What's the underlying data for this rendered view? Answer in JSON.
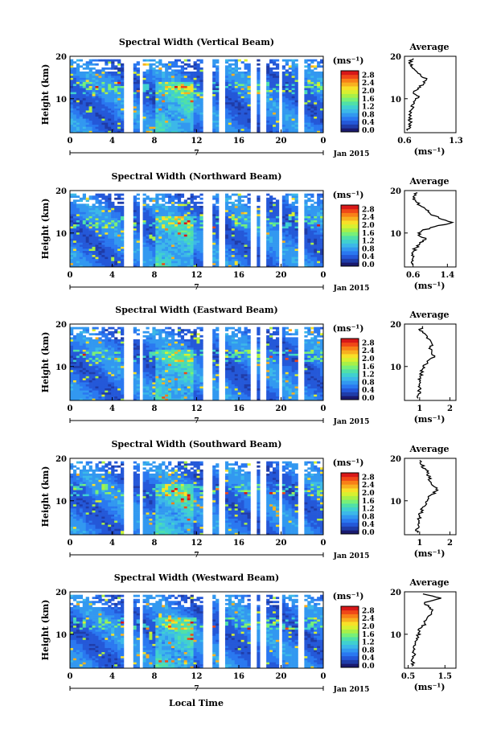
{
  "figure": {
    "xlabel": "Local Time",
    "date_label": "Jan 2015",
    "day_tick": "7",
    "unit_label": "(ms⁻¹)",
    "height_label": "Height (km)",
    "average_title": "Average"
  },
  "colormap": [
    "#1a1a6e",
    "#1f3ca8",
    "#2458d8",
    "#2a78f0",
    "#3298f0",
    "#3cb8e8",
    "#40d0d0",
    "#50e0a8",
    "#78f078",
    "#a8f048",
    "#d8f030",
    "#f8e028",
    "#f8b020",
    "#f88018",
    "#f04818",
    "#d81818"
  ],
  "chart_data": [
    {
      "type": "heatmap",
      "title": "Spectral Width (Vertical Beam)",
      "xlabel": "Local Time",
      "ylabel": "Height (km)",
      "xlim": [
        0,
        24
      ],
      "ylim": [
        2,
        20
      ],
      "xticks": [
        "0",
        "4",
        "8",
        "12",
        "16",
        "20",
        "0"
      ],
      "yticks": [
        "10",
        "20"
      ],
      "gaps": [
        [
          5.1,
          6.0
        ],
        [
          6.5,
          7.0
        ],
        [
          12.7,
          13.4
        ],
        [
          14.2,
          14.6
        ],
        [
          17.1,
          17.6
        ],
        [
          18.1,
          18.6
        ],
        [
          19.7,
          20.2
        ],
        [
          21.7,
          22.1
        ]
      ],
      "top_km": 19.3,
      "colorbar": {
        "ticks": [
          "0.0",
          "0.4",
          "0.8",
          "1.2",
          "1.6",
          "2.0",
          "2.4",
          "2.8"
        ],
        "range": [
          0,
          3.0
        ]
      },
      "average": {
        "title": "Average",
        "xlabel": "(ms⁻¹)",
        "xticks": [
          "0.6",
          "1.3"
        ],
        "xlim": [
          0.6,
          1.3
        ],
        "profile": [
          [
            2.5,
            0.64
          ],
          [
            3.5,
            0.66
          ],
          [
            4.5,
            0.7
          ],
          [
            5.5,
            0.66
          ],
          [
            6.5,
            0.68
          ],
          [
            7.5,
            0.7
          ],
          [
            8.5,
            0.7
          ],
          [
            9.5,
            0.74
          ],
          [
            10.5,
            0.8
          ],
          [
            11.5,
            0.72
          ],
          [
            12.5,
            0.78
          ],
          [
            13.5,
            0.86
          ],
          [
            14.5,
            0.9
          ],
          [
            15.5,
            0.82
          ],
          [
            16.5,
            0.76
          ],
          [
            17.5,
            0.7
          ],
          [
            18.5,
            0.66
          ],
          [
            19.5,
            0.72
          ]
        ]
      }
    },
    {
      "type": "heatmap",
      "title": "Spectral Width (Northward Beam)",
      "xlabel": "Local Time",
      "ylabel": "Height (km)",
      "xlim": [
        0,
        24
      ],
      "ylim": [
        2,
        20
      ],
      "xticks": [
        "0",
        "4",
        "8",
        "12",
        "16",
        "20",
        "0"
      ],
      "yticks": [
        "10",
        "20"
      ],
      "gaps": [
        [
          5.1,
          6.0
        ],
        [
          6.5,
          7.0
        ],
        [
          12.7,
          13.4
        ],
        [
          14.2,
          14.6
        ],
        [
          17.1,
          17.6
        ],
        [
          18.1,
          18.6
        ],
        [
          19.7,
          20.2
        ],
        [
          21.7,
          22.1
        ]
      ],
      "top_km": 19.3,
      "colorbar": {
        "ticks": [
          "0.0",
          "0.4",
          "0.8",
          "1.2",
          "1.6",
          "2.0",
          "2.4",
          "2.8"
        ],
        "range": [
          0,
          3.0
        ]
      },
      "average": {
        "title": "Average",
        "xlabel": "(ms⁻¹)",
        "xticks": [
          "0.6",
          "1.4"
        ],
        "xlim": [
          0.4,
          1.6
        ],
        "profile": [
          [
            2.5,
            0.58
          ],
          [
            3.5,
            0.6
          ],
          [
            4.5,
            0.62
          ],
          [
            5.5,
            0.6
          ],
          [
            6.5,
            0.66
          ],
          [
            7.5,
            0.76
          ],
          [
            8.5,
            0.9
          ],
          [
            9.5,
            0.72
          ],
          [
            10.5,
            0.8
          ],
          [
            11.5,
            1.1
          ],
          [
            12.5,
            1.52
          ],
          [
            13.5,
            1.2
          ],
          [
            14.5,
            1.0
          ],
          [
            15.5,
            0.9
          ],
          [
            16.5,
            0.76
          ],
          [
            17.5,
            0.66
          ],
          [
            18.5,
            0.6
          ],
          [
            19.5,
            0.7
          ]
        ]
      }
    },
    {
      "type": "heatmap",
      "title": "Spectral Width (Eastward Beam)",
      "xlabel": "Local Time",
      "ylabel": "Height (km)",
      "xlim": [
        0,
        24
      ],
      "ylim": [
        2,
        20
      ],
      "xticks": [
        "0",
        "4",
        "8",
        "12",
        "16",
        "20",
        "0"
      ],
      "yticks": [
        "10",
        "20"
      ],
      "gaps": [
        [
          5.1,
          6.0
        ],
        [
          6.5,
          7.0
        ],
        [
          12.7,
          13.4
        ],
        [
          14.2,
          14.6
        ],
        [
          17.1,
          17.6
        ],
        [
          18.1,
          18.6
        ],
        [
          19.7,
          20.2
        ],
        [
          21.7,
          22.1
        ]
      ],
      "top_km": 19.3,
      "colorbar": {
        "ticks": [
          "0.0",
          "0.4",
          "0.8",
          "1.2",
          "1.6",
          "2.0",
          "2.4",
          "2.8"
        ],
        "range": [
          0,
          3.0
        ]
      },
      "average": {
        "title": "Average",
        "xlabel": "(ms⁻¹)",
        "xticks": [
          "1",
          "2"
        ],
        "xlim": [
          0.5,
          2.2
        ],
        "profile": [
          [
            2.5,
            0.95
          ],
          [
            3.5,
            0.96
          ],
          [
            4.5,
            0.98
          ],
          [
            5.5,
            1.0
          ],
          [
            6.5,
            1.0
          ],
          [
            7.5,
            1.02
          ],
          [
            8.5,
            1.05
          ],
          [
            9.5,
            1.1
          ],
          [
            10.5,
            1.2
          ],
          [
            11.5,
            1.3
          ],
          [
            12.5,
            1.5
          ],
          [
            13.5,
            1.4
          ],
          [
            14.5,
            1.35
          ],
          [
            15.5,
            1.4
          ],
          [
            16.5,
            1.3
          ],
          [
            17.5,
            1.2
          ],
          [
            18.5,
            1.0
          ],
          [
            19.5,
            1.1
          ]
        ]
      }
    },
    {
      "type": "heatmap",
      "title": "Spectral Width (Southward Beam)",
      "xlabel": "Local Time",
      "ylabel": "Height (km)",
      "xlim": [
        0,
        24
      ],
      "ylim": [
        2,
        20
      ],
      "xticks": [
        "0",
        "4",
        "8",
        "12",
        "16",
        "20",
        "0"
      ],
      "yticks": [
        "10",
        "20"
      ],
      "gaps": [
        [
          5.1,
          6.0
        ],
        [
          6.5,
          7.0
        ],
        [
          12.7,
          13.4
        ],
        [
          14.2,
          14.6
        ],
        [
          17.1,
          17.6
        ],
        [
          18.1,
          18.6
        ],
        [
          19.7,
          20.2
        ],
        [
          21.7,
          22.1
        ]
      ],
      "top_km": 19.3,
      "colorbar": {
        "ticks": [
          "0.0",
          "0.4",
          "0.8",
          "1.2",
          "1.6",
          "2.0",
          "2.4",
          "2.8"
        ],
        "range": [
          0,
          3.0
        ]
      },
      "average": {
        "title": "Average",
        "xlabel": "(ms⁻¹)",
        "xticks": [
          "1",
          "2"
        ],
        "xlim": [
          0.5,
          2.2
        ],
        "profile": [
          [
            2.5,
            0.92
          ],
          [
            3.5,
            0.94
          ],
          [
            4.5,
            0.95
          ],
          [
            5.5,
            0.96
          ],
          [
            6.5,
            1.0
          ],
          [
            7.5,
            1.05
          ],
          [
            8.5,
            1.1
          ],
          [
            9.5,
            1.2
          ],
          [
            10.5,
            1.3
          ],
          [
            11.5,
            1.4
          ],
          [
            12.5,
            1.6
          ],
          [
            13.5,
            1.45
          ],
          [
            14.5,
            1.35
          ],
          [
            15.5,
            1.3
          ],
          [
            16.5,
            1.3
          ],
          [
            17.5,
            1.2
          ],
          [
            18.5,
            1.05
          ],
          [
            19.5,
            1.0
          ]
        ]
      }
    },
    {
      "type": "heatmap",
      "title": "Spectral Width (Westward Beam)",
      "xlabel": "Local Time",
      "ylabel": "Height (km)",
      "xlim": [
        0,
        24
      ],
      "ylim": [
        2,
        20
      ],
      "xticks": [
        "0",
        "4",
        "8",
        "12",
        "16",
        "20",
        "0"
      ],
      "yticks": [
        "10",
        "20"
      ],
      "gaps": [
        [
          5.1,
          6.0
        ],
        [
          6.5,
          7.0
        ],
        [
          12.7,
          13.4
        ],
        [
          14.2,
          14.6
        ],
        [
          17.1,
          17.6
        ],
        [
          18.1,
          18.6
        ],
        [
          19.7,
          20.2
        ],
        [
          21.7,
          22.1
        ]
      ],
      "top_km": 19.3,
      "colorbar": {
        "ticks": [
          "0.0",
          "0.4",
          "0.8",
          "1.2",
          "1.6",
          "2.0",
          "2.4",
          "2.8"
        ],
        "range": [
          0,
          3.0
        ]
      },
      "average": {
        "title": "Average",
        "xlabel": "(ms⁻¹)",
        "xticks": [
          "0.5",
          "1.5"
        ],
        "xlim": [
          0.4,
          1.8
        ],
        "profile": [
          [
            2.5,
            0.6
          ],
          [
            3.5,
            0.62
          ],
          [
            4.5,
            0.64
          ],
          [
            5.5,
            0.66
          ],
          [
            6.5,
            0.68
          ],
          [
            7.5,
            0.7
          ],
          [
            8.5,
            0.72
          ],
          [
            9.5,
            0.76
          ],
          [
            10.5,
            0.8
          ],
          [
            11.5,
            0.85
          ],
          [
            12.5,
            0.95
          ],
          [
            13.5,
            1.0
          ],
          [
            14.5,
            1.1
          ],
          [
            15.5,
            1.15
          ],
          [
            16.5,
            1.05
          ],
          [
            17.5,
            0.95
          ],
          [
            18.5,
            1.4
          ],
          [
            19.5,
            0.9
          ]
        ]
      }
    }
  ]
}
